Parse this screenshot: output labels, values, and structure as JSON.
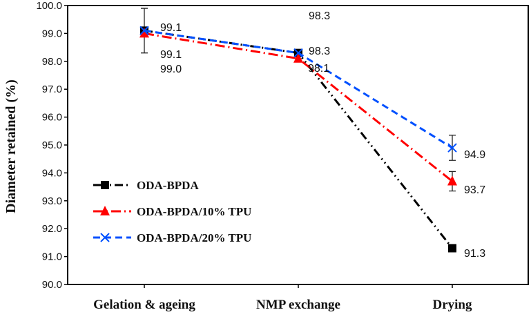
{
  "chart_data": {
    "type": "line",
    "title": "",
    "xlabel": "",
    "ylabel": "Diameter retained (%)",
    "categories": [
      "Gelation & ageing",
      "NMP exchange",
      "Drying"
    ],
    "ylim": [
      90.0,
      100.0
    ],
    "yticks": [
      "90.0",
      "91.0",
      "92.0",
      "93.0",
      "94.0",
      "95.0",
      "96.0",
      "97.0",
      "98.0",
      "99.0",
      "100.0"
    ],
    "grid": false,
    "legend_position": "left-center",
    "series": [
      {
        "name": "ODA-BPDA",
        "values": [
          99.1,
          98.3,
          91.3
        ],
        "labels": [
          "99.1",
          "98.3",
          "91.3"
        ],
        "error": [
          0.8,
          0.05,
          0.05
        ],
        "color": "#000000",
        "marker": "square",
        "dash": "dash-dot-dot"
      },
      {
        "name": "ODA-BPDA/10% TPU",
        "values": [
          99.0,
          98.1,
          93.7
        ],
        "labels": [
          "99.0",
          "98.1",
          "93.7"
        ],
        "error": [
          0.05,
          0.05,
          0.35
        ],
        "color": "#ff0000",
        "marker": "triangle",
        "dash": "dash-dot"
      },
      {
        "name": "ODA-BPDA/20% TPU",
        "values": [
          99.1,
          98.3,
          94.9
        ],
        "labels": [
          "99.1",
          "98.3",
          "94.9"
        ],
        "error": [
          0.05,
          0.05,
          0.45
        ],
        "color": "#0050ff",
        "marker": "x",
        "dash": "dash"
      }
    ]
  }
}
